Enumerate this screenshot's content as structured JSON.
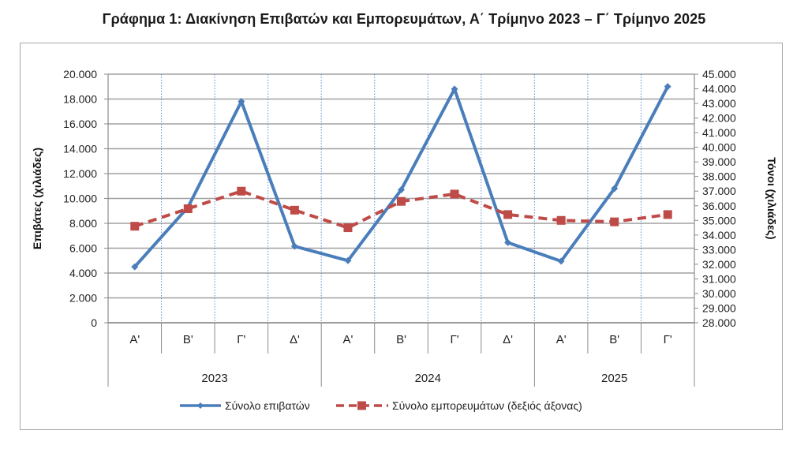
{
  "chart_data": {
    "type": "line",
    "title": "Γράφημα 1: Διακίνηση Επιβατών και Εμπορευμάτων, Α΄ Τρίμηνο 2023 – Γ΄ Τρίμηνο 2025",
    "xlabel": "",
    "ylabel": "Επιβάτες  (χιλιάδες)",
    "ylabel_right": "Τόνοι  (χιλιάδες)",
    "categories": [
      "Α'",
      "Β'",
      "Γ'",
      "Δ'",
      "Α'",
      "Β'",
      "Γ'",
      "Δ'",
      "Α'",
      "Β'",
      "Γ'"
    ],
    "category_groups": [
      {
        "label": "2023",
        "span": 4
      },
      {
        "label": "2024",
        "span": 4
      },
      {
        "label": "2025",
        "span": 3
      }
    ],
    "ylim": [
      0,
      20000
    ],
    "ylim_right": [
      28000,
      45000
    ],
    "yticks": [
      "0",
      "2.000",
      "4.000",
      "6.000",
      "8.000",
      "10.000",
      "12.000",
      "14.000",
      "16.000",
      "18.000",
      "20.000"
    ],
    "yticks_right": [
      "28.000",
      "29.000",
      "30.000",
      "31.000",
      "32.000",
      "33.000",
      "34.000",
      "35.000",
      "36.000",
      "37.000",
      "38.000",
      "39.000",
      "40.000",
      "41.000",
      "42.000",
      "43.000",
      "44.000",
      "45.000"
    ],
    "grid": true,
    "legend_position": "bottom",
    "series": [
      {
        "name": "Σύνολο επιβατών",
        "axis": "left",
        "color": "#4a7ebb",
        "style": "solid",
        "marker": "diamond",
        "values": [
          4500,
          9300,
          17800,
          6150,
          5000,
          10700,
          18800,
          6450,
          4950,
          10800,
          19000
        ]
      },
      {
        "name": "Σύνολο εμπορευμάτων (δεξιός άξονας)",
        "axis": "right",
        "color": "#be4b48",
        "style": "dashed",
        "marker": "square",
        "values": [
          34600,
          35800,
          37000,
          35700,
          34500,
          36300,
          36800,
          35400,
          35000,
          34900,
          35400
        ]
      }
    ]
  }
}
